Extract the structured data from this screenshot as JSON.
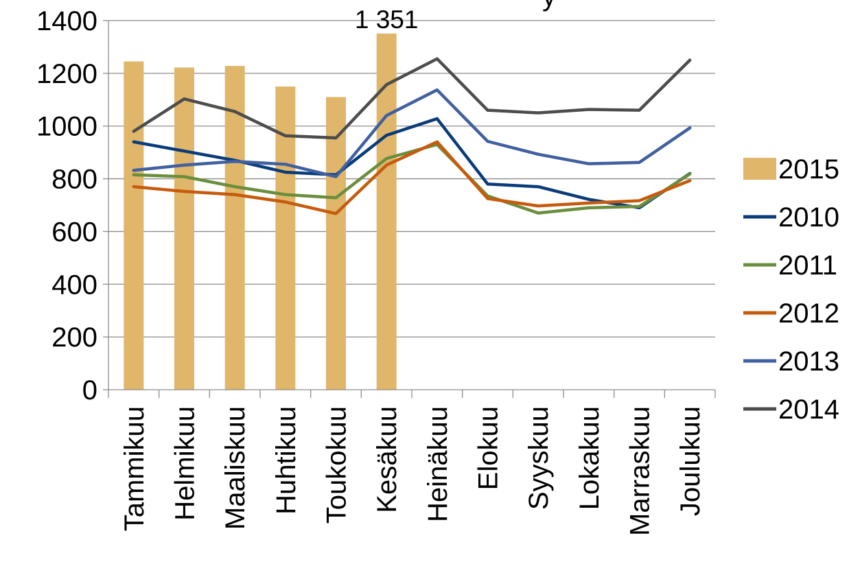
{
  "chart_data": {
    "type": "bar",
    "title": "",
    "xlabel": "",
    "ylabel": "",
    "ylim": [
      0,
      1400
    ],
    "yticks": [
      0,
      200,
      400,
      600,
      800,
      1000,
      1200,
      1400
    ],
    "ytick_labels": [
      "0",
      "200",
      "400",
      "600",
      "800",
      "1000",
      "1200",
      "1400"
    ],
    "grid": true,
    "legend_position": "right",
    "categories": [
      "Tammikuu",
      "Helmikuu",
      "Maaliskuu",
      "Huhtikuu",
      "Toukokuu",
      "Kesäkuu",
      "Heinäkuu",
      "Elokuu",
      "Syyskuu",
      "Lokakuu",
      "Marraskuu",
      "Joulukuu"
    ],
    "bar_series": [
      {
        "name": "2015",
        "color": "#E0B66A",
        "values": [
          1245,
          1222,
          1228,
          1150,
          1110,
          1351,
          null,
          null,
          null,
          null,
          null,
          null
        ]
      }
    ],
    "line_series": [
      {
        "name": "2010",
        "color": "#0A3C7A",
        "values": [
          940,
          905,
          870,
          825,
          815,
          965,
          1028,
          780,
          770,
          722,
          690,
          820
        ]
      },
      {
        "name": "2011",
        "color": "#6A8E3D",
        "values": [
          815,
          808,
          770,
          740,
          728,
          877,
          930,
          735,
          670,
          690,
          695,
          818
        ]
      },
      {
        "name": "2012",
        "color": "#C75B0C",
        "values": [
          770,
          752,
          740,
          712,
          668,
          852,
          940,
          725,
          697,
          708,
          717,
          793
        ]
      },
      {
        "name": "2013",
        "color": "#4160A0",
        "values": [
          832,
          852,
          866,
          855,
          808,
          1040,
          1137,
          942,
          893,
          857,
          862,
          993
        ]
      },
      {
        "name": "2014",
        "color": "#4D4D4D",
        "values": [
          980,
          1103,
          1055,
          963,
          955,
          1157,
          1255,
          1060,
          1050,
          1063,
          1060,
          1250
        ]
      }
    ],
    "data_labels": [
      {
        "category": "Kesäkuu",
        "series": "2015",
        "text": "1 351"
      }
    ],
    "partial_title_glyph": "y"
  }
}
